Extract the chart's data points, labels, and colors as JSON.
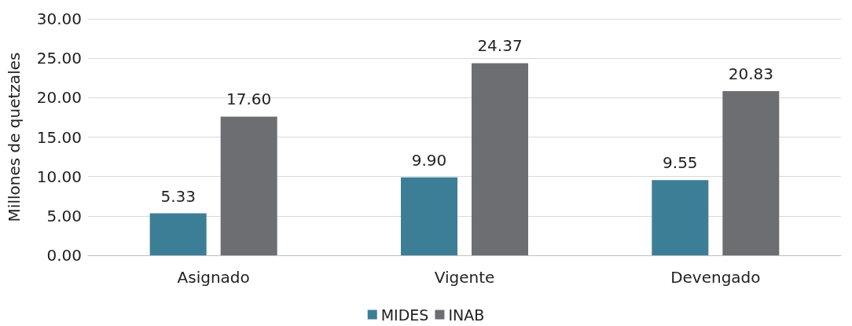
{
  "chart_data": {
    "type": "bar",
    "ylabel": "Millones de quetzales",
    "categories": [
      "Asignado",
      "Vigente",
      "Devengado"
    ],
    "series": [
      {
        "name": "MIDES",
        "color": "#3d7e97",
        "values": [
          5.33,
          9.9,
          9.55
        ],
        "value_labels": [
          "5.33",
          "9.90",
          "9.55"
        ]
      },
      {
        "name": "INAB",
        "color": "#6d6e71",
        "values": [
          17.6,
          24.37,
          20.83
        ],
        "value_labels": [
          "17.60",
          "24.37",
          "20.83"
        ]
      }
    ],
    "ylim": [
      0,
      30
    ],
    "yticks": [
      {
        "value": 0,
        "label": "0.00"
      },
      {
        "value": 5,
        "label": "5.00"
      },
      {
        "value": 10,
        "label": "10.00"
      },
      {
        "value": 15,
        "label": "15.00"
      },
      {
        "value": 20,
        "label": "20.00"
      },
      {
        "value": 25,
        "label": "25.00"
      },
      {
        "value": 30,
        "label": "30.00"
      }
    ],
    "grid": "y",
    "legend": "bottom"
  }
}
